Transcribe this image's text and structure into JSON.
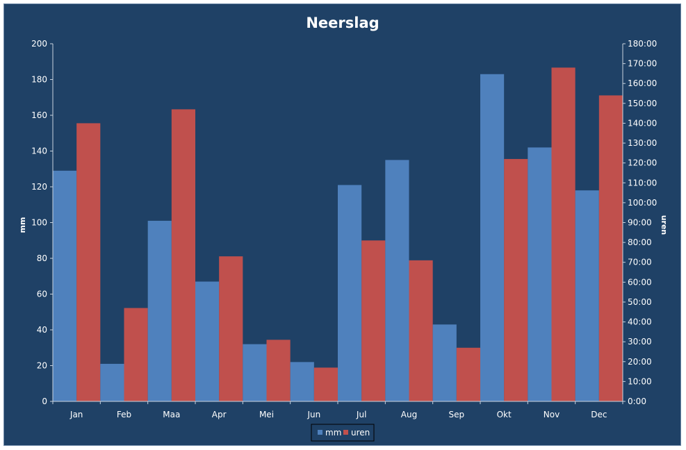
{
  "chart_data": {
    "type": "bar",
    "title": "Neerslag",
    "categories": [
      "Jan",
      "Feb",
      "Maa",
      "Apr",
      "Mei",
      "Jun",
      "Jul",
      "Aug",
      "Sep",
      "Okt",
      "Nov",
      "Dec"
    ],
    "series": [
      {
        "name": "mm",
        "axis": "left",
        "color": "#4f81bd",
        "values": [
          129,
          21,
          101,
          67,
          32,
          22,
          121,
          135,
          43,
          183,
          142,
          118
        ]
      },
      {
        "name": "uren",
        "axis": "right",
        "color": "#c0504d",
        "values_hours": [
          140,
          47,
          147,
          73,
          31,
          17,
          81,
          71,
          27,
          122,
          168,
          154
        ],
        "values": [
          "140:00",
          "47:00",
          "147:00",
          "73:00",
          "31:00",
          "17:00",
          "81:00",
          "71:00",
          "27:00",
          "122:00",
          "168:00",
          "154:00"
        ]
      }
    ],
    "ylabel": "mm",
    "ylim": [
      0,
      200
    ],
    "yticks": [
      "0",
      "20",
      "40",
      "60",
      "80",
      "100",
      "120",
      "140",
      "160",
      "180",
      "200"
    ],
    "y2label": "uren",
    "y2lim_hours": [
      0,
      180
    ],
    "y2ticks": [
      "0:00",
      "10:00",
      "20:00",
      "30:00",
      "40:00",
      "50:00",
      "60:00",
      "70:00",
      "80:00",
      "90:00",
      "100:00",
      "110:00",
      "120:00",
      "130:00",
      "140:00",
      "150:00",
      "160:00",
      "170:00",
      "180:00"
    ],
    "legend": {
      "position": "bottom",
      "entries": [
        "mm",
        "uren"
      ]
    },
    "grid": false,
    "background": "#1f4166"
  }
}
